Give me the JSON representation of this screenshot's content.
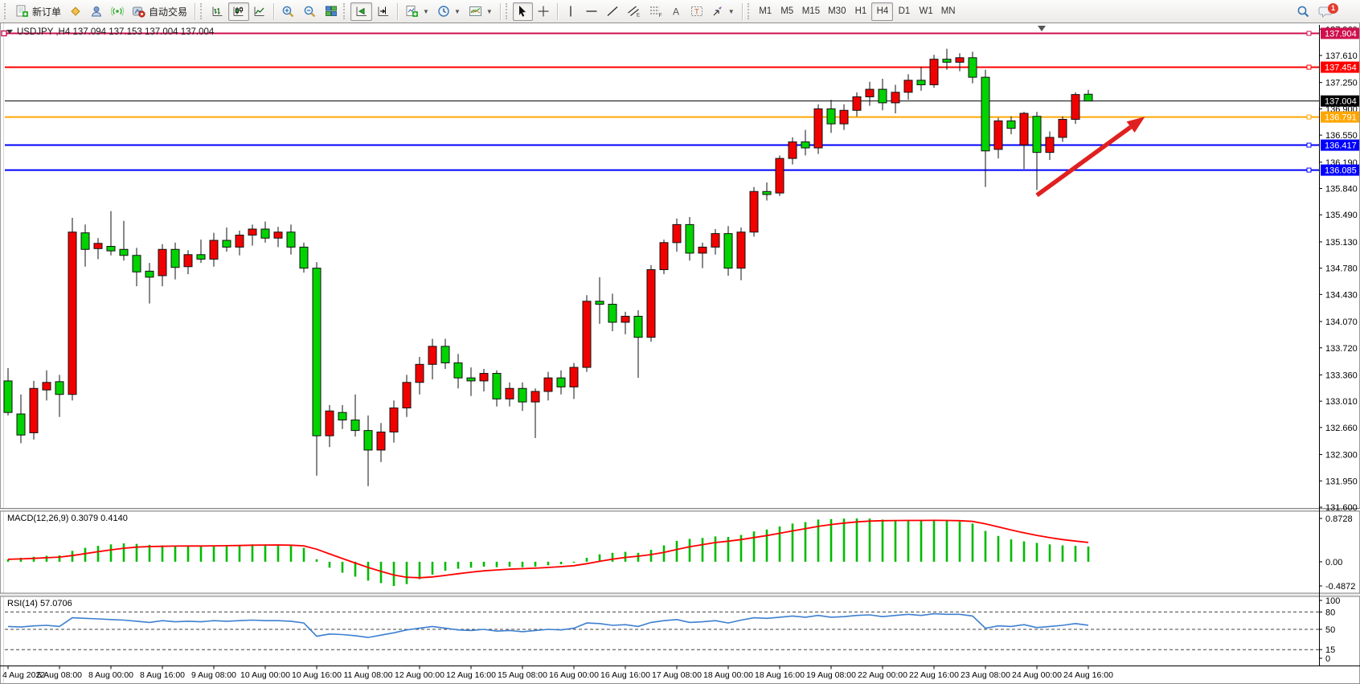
{
  "toolbar": {
    "new_order": "新订单",
    "autotrading": "自动交易",
    "timeframes": [
      "M1",
      "M5",
      "M15",
      "M30",
      "H1",
      "H4",
      "D1",
      "W1",
      "MN"
    ],
    "active_timeframe": "H4",
    "notification_badge": "1",
    "icons": {
      "new_order": "document-green-plus",
      "metaquotes": "yellow-diamond",
      "community": "person-cloud",
      "signals": "broadcast-waves",
      "autotrading": "gear-red-dot",
      "bar_chart": "ohlc-bars",
      "candle_chart": "candlestick",
      "line_chart": "polyline",
      "zoom_in": "magnifier-plus",
      "zoom_out": "magnifier-minus",
      "tile_windows": "colored-grid",
      "auto_scroll": "axis-green-arrow",
      "chart_shift": "axis-shift-arrow",
      "indicators": "document-plus-dropdown",
      "periods": "clock-dropdown",
      "templates": "chart-template-dropdown",
      "cursor": "pointer-arrow",
      "crosshair": "crosshair",
      "vline": "vertical-line",
      "hline": "horizontal-line",
      "trendline": "diagonal-line",
      "channel": "equidistant-channel-E",
      "fibonacci": "fibonacci-F",
      "text": "letter-A",
      "text_label": "boxed-T",
      "arrows": "arrow-objects",
      "search": "magnifier",
      "chat": "speech-bubble"
    }
  },
  "chart_data": {
    "type": "candlestick",
    "symbol_title": "USDJPY ,H4 137.094 137.153 137.004 137.004",
    "price_pane": {
      "bull_color": "#f20000",
      "bear_color": "#00d300",
      "outline_color": "#111111",
      "y_ticks": [
        "137.960",
        "137.610",
        "137.250",
        "136.900",
        "136.550",
        "136.190",
        "135.840",
        "135.490",
        "135.130",
        "134.780",
        "134.430",
        "134.070",
        "133.720",
        "133.360",
        "133.010",
        "132.660",
        "132.300",
        "131.950",
        "131.600"
      ],
      "scale_top_price": 137.61,
      "scale_bottom_price": 131.6,
      "hlines": [
        {
          "price": 137.904,
          "label": "137.904",
          "color": "#cf0f4e"
        },
        {
          "price": 137.454,
          "label": "137.454",
          "color": "#ff0000"
        },
        {
          "price": 136.791,
          "label": "136.791",
          "color": "#ffa600"
        },
        {
          "price": 136.417,
          "label": "136.417",
          "color": "#0000ff"
        },
        {
          "price": 136.085,
          "label": "136.085",
          "color": "#0000ff"
        }
      ],
      "current_price": {
        "price": 137.004,
        "label": "137.004",
        "color": "#000000"
      },
      "arrow": {
        "bar_from": 80,
        "price_from": 135.75,
        "bar_to": 88.4,
        "price_to": 136.795,
        "color": "#e02020"
      },
      "candles": {
        "open": [
          133.28,
          132.84,
          132.59,
          133.16,
          133.27,
          133.1,
          135.25,
          135.04,
          135.07,
          135.03,
          134.95,
          134.74,
          134.68,
          135.03,
          134.8,
          134.96,
          134.9,
          135.15,
          135.06,
          135.22,
          135.3,
          135.18,
          135.26,
          135.06,
          134.78,
          132.55,
          132.86,
          132.76,
          132.62,
          132.36,
          132.6,
          132.92,
          133.26,
          133.5,
          133.74,
          133.52,
          133.32,
          133.28,
          133.38,
          133.04,
          133.18,
          133.0,
          133.14,
          133.32,
          133.2,
          133.46,
          134.34,
          134.3,
          134.06,
          134.14,
          133.86,
          134.76,
          135.12,
          135.36,
          134.98,
          135.06,
          135.24,
          134.78,
          135.26,
          135.8,
          135.78,
          136.24,
          136.46,
          136.38,
          136.9,
          136.7,
          136.88,
          137.06,
          137.16,
          136.98,
          137.12,
          137.28,
          137.22,
          137.56,
          137.52,
          137.58,
          137.32,
          136.36,
          136.74,
          136.42,
          136.8,
          136.32,
          136.52,
          136.76,
          137.094
        ],
        "high": [
          133.45,
          133.1,
          133.28,
          133.42,
          133.36,
          135.45,
          135.36,
          135.18,
          135.54,
          135.41,
          135.05,
          134.85,
          135.1,
          135.12,
          135.02,
          135.16,
          135.25,
          135.32,
          135.28,
          135.36,
          135.4,
          135.33,
          135.36,
          135.12,
          134.86,
          132.96,
          132.96,
          133.1,
          132.82,
          132.72,
          133.02,
          133.36,
          133.6,
          133.84,
          133.84,
          133.64,
          133.46,
          133.44,
          133.42,
          133.26,
          133.26,
          133.18,
          133.4,
          133.42,
          133.52,
          134.42,
          134.66,
          134.44,
          134.2,
          134.22,
          134.82,
          135.16,
          135.44,
          135.46,
          135.12,
          135.3,
          135.34,
          135.32,
          135.86,
          135.92,
          136.28,
          136.52,
          136.62,
          136.96,
          137.02,
          136.96,
          137.12,
          137.26,
          137.3,
          137.22,
          137.36,
          137.46,
          137.62,
          137.7,
          137.64,
          137.66,
          137.42,
          136.78,
          136.8,
          136.86,
          136.86,
          136.6,
          136.8,
          137.12,
          137.153
        ],
        "low": [
          132.82,
          132.45,
          132.5,
          133.02,
          132.8,
          133.02,
          134.8,
          134.9,
          134.95,
          134.88,
          134.54,
          134.31,
          134.54,
          134.63,
          134.7,
          134.85,
          134.8,
          135.0,
          134.95,
          135.08,
          135.12,
          135.06,
          134.96,
          134.72,
          132.02,
          132.4,
          132.64,
          132.54,
          131.88,
          132.2,
          132.46,
          132.8,
          133.1,
          133.3,
          133.44,
          133.18,
          133.08,
          133.14,
          132.94,
          132.94,
          132.88,
          132.52,
          133.02,
          133.1,
          133.04,
          133.4,
          134.04,
          133.94,
          133.9,
          133.32,
          133.8,
          134.7,
          135.0,
          134.88,
          134.78,
          134.96,
          134.68,
          134.62,
          135.2,
          135.68,
          135.74,
          136.16,
          136.28,
          136.3,
          136.58,
          136.62,
          136.8,
          136.94,
          136.88,
          136.84,
          137.02,
          137.14,
          137.18,
          137.42,
          137.4,
          137.24,
          135.86,
          136.24,
          136.56,
          136.1,
          135.82,
          136.22,
          136.46,
          136.7,
          137.004
        ],
        "close": [
          132.86,
          132.56,
          133.18,
          133.26,
          133.1,
          135.26,
          135.03,
          135.11,
          135.01,
          134.95,
          134.73,
          134.66,
          135.03,
          134.79,
          134.96,
          134.9,
          135.15,
          135.06,
          135.22,
          135.3,
          135.18,
          135.26,
          135.06,
          134.78,
          132.55,
          132.88,
          132.76,
          132.62,
          132.36,
          132.6,
          132.92,
          133.26,
          133.5,
          133.74,
          133.52,
          133.32,
          133.28,
          133.38,
          133.04,
          133.18,
          133.0,
          133.14,
          133.32,
          133.2,
          133.46,
          134.34,
          134.3,
          134.06,
          134.14,
          133.86,
          134.76,
          135.12,
          135.36,
          134.98,
          135.06,
          135.24,
          134.78,
          135.26,
          135.8,
          135.76,
          136.24,
          136.46,
          136.38,
          136.9,
          136.7,
          136.88,
          137.06,
          137.16,
          136.98,
          137.12,
          137.28,
          137.22,
          137.56,
          137.52,
          137.58,
          137.32,
          136.34,
          136.74,
          136.64,
          136.84,
          136.32,
          136.52,
          136.76,
          137.09,
          137.004
        ]
      }
    },
    "time_axis": {
      "bars_per_label": 4,
      "labels": [
        "4 Aug 2022",
        "5 Aug 08:00",
        "8 Aug 00:00",
        "8 Aug 16:00",
        "9 Aug 08:00",
        "10 Aug 00:00",
        "10 Aug 16:00",
        "11 Aug 08:00",
        "12 Aug 00:00",
        "12 Aug 16:00",
        "15 Aug 08:00",
        "16 Aug 00:00",
        "16 Aug 16:00",
        "17 Aug 08:00",
        "18 Aug 00:00",
        "18 Aug 16:00",
        "19 Aug 08:00",
        "22 Aug 00:00",
        "22 Aug 16:00",
        "23 Aug 08:00",
        "24 Aug 00:00",
        "24 Aug 16:00"
      ]
    },
    "macd_pane": {
      "label": "MACD(12,26,9) 0.3079 0.4140",
      "scale_labels": [
        "0.8728",
        "0.00",
        "-0.4872"
      ],
      "scale_max": 0.8728,
      "scale_min": -0.4872,
      "histogram_color": "#00bb00",
      "signal_color": "#ff0000",
      "values": [
        0.05,
        0.08,
        0.1,
        0.12,
        0.13,
        0.22,
        0.28,
        0.32,
        0.35,
        0.37,
        0.36,
        0.34,
        0.33,
        0.33,
        0.32,
        0.32,
        0.33,
        0.33,
        0.34,
        0.35,
        0.35,
        0.34,
        0.32,
        0.28,
        0.05,
        -0.12,
        -0.22,
        -0.3,
        -0.38,
        -0.43,
        -0.4872,
        -0.45,
        -0.35,
        -0.26,
        -0.18,
        -0.14,
        -0.12,
        -0.1,
        -0.11,
        -0.1,
        -0.11,
        -0.1,
        -0.07,
        -0.05,
        -0.02,
        0.08,
        0.15,
        0.18,
        0.2,
        0.18,
        0.24,
        0.33,
        0.42,
        0.46,
        0.48,
        0.51,
        0.5,
        0.54,
        0.61,
        0.65,
        0.71,
        0.77,
        0.8,
        0.85,
        0.86,
        0.87,
        0.8728,
        0.87,
        0.85,
        0.84,
        0.84,
        0.83,
        0.84,
        0.83,
        0.81,
        0.77,
        0.62,
        0.52,
        0.45,
        0.41,
        0.38,
        0.35,
        0.33,
        0.32,
        0.3079
      ]
    },
    "rsi_pane": {
      "label": "RSI(14) 57.0706",
      "scale_labels": [
        "100",
        "80",
        "50",
        "15",
        "0"
      ],
      "levels": [
        80,
        50,
        15
      ],
      "scale_top": 100,
      "scale_bottom": 0,
      "line_color": "#3d7fd0",
      "values": [
        55,
        54,
        56,
        57,
        55,
        70,
        69,
        68,
        67,
        66,
        64,
        62,
        65,
        63,
        64,
        63,
        65,
        64,
        65,
        66,
        65,
        65,
        64,
        61,
        38,
        42,
        41,
        39,
        36,
        40,
        44,
        49,
        52,
        55,
        52,
        49,
        48,
        50,
        47,
        48,
        46,
        48,
        50,
        49,
        52,
        61,
        60,
        57,
        58,
        55,
        62,
        65,
        67,
        62,
        63,
        65,
        61,
        66,
        70,
        69,
        71,
        73,
        71,
        74,
        71,
        72,
        74,
        75,
        72,
        74,
        76,
        74,
        77,
        76,
        76,
        73,
        52,
        56,
        55,
        58,
        53,
        55,
        57,
        60,
        57.0706
      ]
    }
  }
}
